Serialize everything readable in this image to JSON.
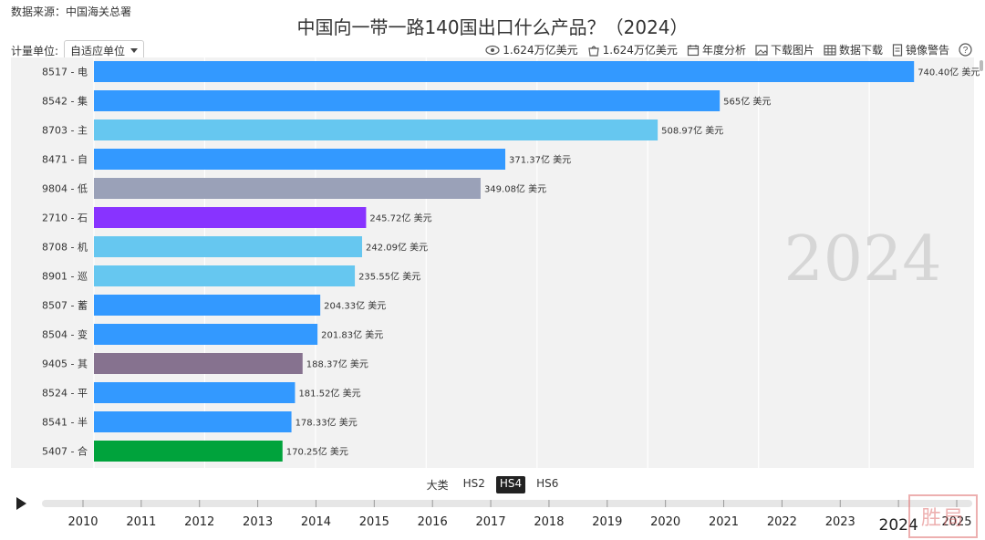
{
  "header": {
    "source": "数据来源：中国海关总署",
    "title": "中国向一带一路140国出口什么产品？（2024）",
    "unit_label": "计量单位:",
    "unit_value": "自适应单位"
  },
  "toolbar": {
    "total_a": "1.624万亿美元",
    "total_b": "1.624万亿美元",
    "annual": "年度分析",
    "download_img": "下载图片",
    "download_data": "数据下载",
    "mirror_warning": "镜像警告"
  },
  "hs_tabs": [
    "大类",
    "HS2",
    "HS4",
    "HS6"
  ],
  "hs_active": "HS4",
  "timeline": {
    "years": [
      "2010",
      "2011",
      "2012",
      "2013",
      "2014",
      "2015",
      "2016",
      "2017",
      "2018",
      "2019",
      "2020",
      "2021",
      "2022",
      "2023",
      "2024",
      "2025"
    ],
    "current": "2024"
  },
  "watermark": "胜局",
  "colors": {
    "blue": "#3399ff",
    "lightblue": "#66c7f0",
    "gray": "#9aa1b8",
    "purple": "#8833ff",
    "mauve": "#86728f",
    "green": "#00a33c"
  },
  "chart_data": {
    "type": "bar",
    "orientation": "horizontal",
    "year_label": "2024",
    "unit": "亿 美元",
    "xlim": [
      0,
      760
    ],
    "categories": [
      "8517 - 电",
      "8542 - 集",
      "8703 - 主",
      "8471 - 自",
      "9804 - 低",
      "2710 - 石",
      "8708 - 机",
      "8901 - 巡",
      "8507 - 蓄",
      "8504 - 变",
      "9405 - 其",
      "8524 - 平",
      "8541 - 半",
      "5407 - 合"
    ],
    "values": [
      740.4,
      565,
      508.97,
      371.37,
      349.08,
      245.72,
      242.09,
      235.55,
      204.33,
      201.83,
      188.37,
      181.52,
      178.33,
      170.25
    ],
    "value_labels": [
      "740.40亿 美元",
      "565亿 美元",
      "508.97亿 美元",
      "371.37亿 美元",
      "349.08亿 美元",
      "245.72亿 美元",
      "242.09亿 美元",
      "235.55亿 美元",
      "204.33亿 美元",
      "201.83亿 美元",
      "188.37亿 美元",
      "181.52亿 美元",
      "178.33亿 美元",
      "170.25亿 美元"
    ],
    "bar_colors": [
      "blue",
      "blue",
      "lightblue",
      "blue",
      "gray",
      "purple",
      "lightblue",
      "lightblue",
      "blue",
      "blue",
      "mauve",
      "blue",
      "blue",
      "green"
    ]
  }
}
